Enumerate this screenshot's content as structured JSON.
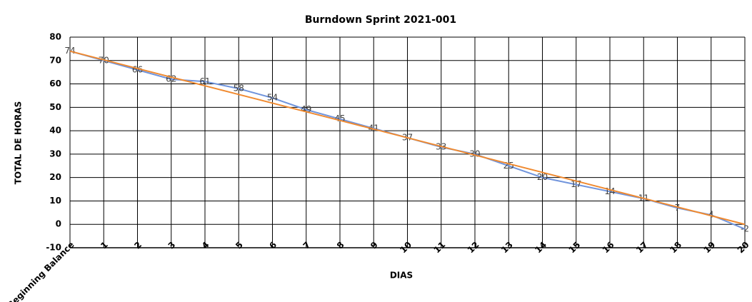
{
  "chart_data": {
    "type": "line",
    "title": "Burndown Sprint 2021-001",
    "x_label": "DIAS",
    "y_label": "TOTAL DE HORAS",
    "categories": [
      "Beginning Balance",
      "1",
      "2",
      "3",
      "4",
      "5",
      "6",
      "7",
      "8",
      "9",
      "10",
      "11",
      "12",
      "13",
      "14",
      "15",
      "16",
      "17",
      "18",
      "19",
      "20"
    ],
    "series": [
      {
        "color": "#7094dc",
        "values": [
          74,
          70,
          66,
          62,
          61,
          58,
          54,
          49,
          45,
          41,
          37,
          33,
          30,
          25,
          20,
          17,
          14,
          11,
          7,
          4,
          -2
        ],
        "data_labels": true
      },
      {
        "color": "#f08a30",
        "values": [
          74,
          70.3,
          66.6,
          62.9,
          59.2,
          55.5,
          51.8,
          48.1,
          44.4,
          40.7,
          37,
          33.3,
          29.6,
          25.9,
          22.2,
          18.5,
          14.8,
          11.1,
          7.4,
          3.7,
          0
        ],
        "data_labels": false
      }
    ],
    "ylim": [
      -10,
      80
    ],
    "yticks": [
      -10,
      0,
      10,
      20,
      30,
      40,
      50,
      60,
      70,
      80
    ],
    "grid": true
  }
}
